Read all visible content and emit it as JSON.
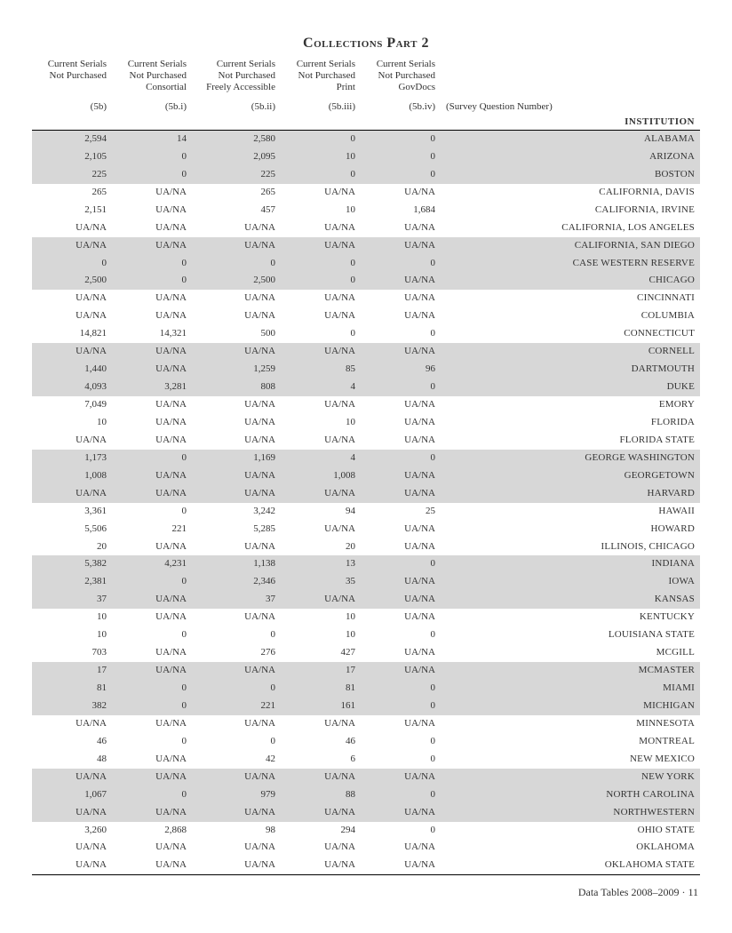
{
  "title": "Collections Part 2",
  "survey_label": "(Survey Question Number)",
  "institution_header": "INSTITUTION",
  "footer": "Data Tables 2008–2009 · 11",
  "colors": {
    "shade": "#d7d7d7",
    "rule": "#000000",
    "text": "#333333",
    "background": "#ffffff"
  },
  "columns": [
    {
      "lines": [
        "Current Serials",
        "Not Purchased"
      ],
      "q": "(5b)"
    },
    {
      "lines": [
        "Current Serials",
        "Not Purchased",
        "Consortial"
      ],
      "q": "(5b.i)"
    },
    {
      "lines": [
        "Current Serials",
        "Not Purchased",
        "Freely Accessible"
      ],
      "q": "(5b.ii)"
    },
    {
      "lines": [
        "Current Serials",
        "Not Purchased",
        "Print"
      ],
      "q": "(5b.iii)"
    },
    {
      "lines": [
        "Current Serials",
        "Not Purchased",
        "GovDocs"
      ],
      "q": "(5b.iv)"
    }
  ],
  "shaded_groups": [
    [
      0,
      2
    ],
    [
      6,
      8
    ],
    [
      12,
      14
    ],
    [
      18,
      20
    ],
    [
      24,
      26
    ],
    [
      30,
      32
    ],
    [
      36,
      38
    ]
  ],
  "rows": [
    {
      "c": [
        "2,594",
        "14",
        "2,580",
        "0",
        "0"
      ],
      "name": "ALABAMA"
    },
    {
      "c": [
        "2,105",
        "0",
        "2,095",
        "10",
        "0"
      ],
      "name": "ARIZONA"
    },
    {
      "c": [
        "225",
        "0",
        "225",
        "0",
        "0"
      ],
      "name": "BOSTON"
    },
    {
      "c": [
        "265",
        "UA/NA",
        "265",
        "UA/NA",
        "UA/NA"
      ],
      "name": "CALIFORNIA, DAVIS"
    },
    {
      "c": [
        "2,151",
        "UA/NA",
        "457",
        "10",
        "1,684"
      ],
      "name": "CALIFORNIA, IRVINE"
    },
    {
      "c": [
        "UA/NA",
        "UA/NA",
        "UA/NA",
        "UA/NA",
        "UA/NA"
      ],
      "name": "CALIFORNIA, LOS ANGELES"
    },
    {
      "c": [
        "UA/NA",
        "UA/NA",
        "UA/NA",
        "UA/NA",
        "UA/NA"
      ],
      "name": "CALIFORNIA, SAN DIEGO"
    },
    {
      "c": [
        "0",
        "0",
        "0",
        "0",
        "0"
      ],
      "name": "CASE WESTERN RESERVE"
    },
    {
      "c": [
        "2,500",
        "0",
        "2,500",
        "0",
        "UA/NA"
      ],
      "name": "CHICAGO"
    },
    {
      "c": [
        "UA/NA",
        "UA/NA",
        "UA/NA",
        "UA/NA",
        "UA/NA"
      ],
      "name": "CINCINNATI"
    },
    {
      "c": [
        "UA/NA",
        "UA/NA",
        "UA/NA",
        "UA/NA",
        "UA/NA"
      ],
      "name": "COLUMBIA"
    },
    {
      "c": [
        "14,821",
        "14,321",
        "500",
        "0",
        "0"
      ],
      "name": "CONNECTICUT"
    },
    {
      "c": [
        "UA/NA",
        "UA/NA",
        "UA/NA",
        "UA/NA",
        "UA/NA"
      ],
      "name": "CORNELL"
    },
    {
      "c": [
        "1,440",
        "UA/NA",
        "1,259",
        "85",
        "96"
      ],
      "name": "DARTMOUTH"
    },
    {
      "c": [
        "4,093",
        "3,281",
        "808",
        "4",
        "0"
      ],
      "name": "DUKE"
    },
    {
      "c": [
        "7,049",
        "UA/NA",
        "UA/NA",
        "UA/NA",
        "UA/NA"
      ],
      "name": "EMORY"
    },
    {
      "c": [
        "10",
        "UA/NA",
        "UA/NA",
        "10",
        "UA/NA"
      ],
      "name": "FLORIDA"
    },
    {
      "c": [
        "UA/NA",
        "UA/NA",
        "UA/NA",
        "UA/NA",
        "UA/NA"
      ],
      "name": "FLORIDA STATE"
    },
    {
      "c": [
        "1,173",
        "0",
        "1,169",
        "4",
        "0"
      ],
      "name": "GEORGE WASHINGTON"
    },
    {
      "c": [
        "1,008",
        "UA/NA",
        "UA/NA",
        "1,008",
        "UA/NA"
      ],
      "name": "GEORGETOWN"
    },
    {
      "c": [
        "UA/NA",
        "UA/NA",
        "UA/NA",
        "UA/NA",
        "UA/NA"
      ],
      "name": "HARVARD"
    },
    {
      "c": [
        "3,361",
        "0",
        "3,242",
        "94",
        "25"
      ],
      "name": "HAWAII"
    },
    {
      "c": [
        "5,506",
        "221",
        "5,285",
        "UA/NA",
        "UA/NA"
      ],
      "name": "HOWARD"
    },
    {
      "c": [
        "20",
        "UA/NA",
        "UA/NA",
        "20",
        "UA/NA"
      ],
      "name": "ILLINOIS, CHICAGO"
    },
    {
      "c": [
        "5,382",
        "4,231",
        "1,138",
        "13",
        "0"
      ],
      "name": "INDIANA"
    },
    {
      "c": [
        "2,381",
        "0",
        "2,346",
        "35",
        "UA/NA"
      ],
      "name": "IOWA"
    },
    {
      "c": [
        "37",
        "UA/NA",
        "37",
        "UA/NA",
        "UA/NA"
      ],
      "name": "KANSAS"
    },
    {
      "c": [
        "10",
        "UA/NA",
        "UA/NA",
        "10",
        "UA/NA"
      ],
      "name": "KENTUCKY"
    },
    {
      "c": [
        "10",
        "0",
        "0",
        "10",
        "0"
      ],
      "name": "LOUISIANA STATE"
    },
    {
      "c": [
        "703",
        "UA/NA",
        "276",
        "427",
        "UA/NA"
      ],
      "name": "MCGILL"
    },
    {
      "c": [
        "17",
        "UA/NA",
        "UA/NA",
        "17",
        "UA/NA"
      ],
      "name": "MCMASTER"
    },
    {
      "c": [
        "81",
        "0",
        "0",
        "81",
        "0"
      ],
      "name": "MIAMI"
    },
    {
      "c": [
        "382",
        "0",
        "221",
        "161",
        "0"
      ],
      "name": "MICHIGAN"
    },
    {
      "c": [
        "UA/NA",
        "UA/NA",
        "UA/NA",
        "UA/NA",
        "UA/NA"
      ],
      "name": "MINNESOTA"
    },
    {
      "c": [
        "46",
        "0",
        "0",
        "46",
        "0"
      ],
      "name": "MONTREAL"
    },
    {
      "c": [
        "48",
        "UA/NA",
        "42",
        "6",
        "0"
      ],
      "name": "NEW MEXICO"
    },
    {
      "c": [
        "UA/NA",
        "UA/NA",
        "UA/NA",
        "UA/NA",
        "UA/NA"
      ],
      "name": "NEW YORK"
    },
    {
      "c": [
        "1,067",
        "0",
        "979",
        "88",
        "0"
      ],
      "name": "NORTH CAROLINA"
    },
    {
      "c": [
        "UA/NA",
        "UA/NA",
        "UA/NA",
        "UA/NA",
        "UA/NA"
      ],
      "name": "NORTHWESTERN"
    },
    {
      "c": [
        "3,260",
        "2,868",
        "98",
        "294",
        "0"
      ],
      "name": "OHIO STATE"
    },
    {
      "c": [
        "UA/NA",
        "UA/NA",
        "UA/NA",
        "UA/NA",
        "UA/NA"
      ],
      "name": "OKLAHOMA"
    },
    {
      "c": [
        "UA/NA",
        "UA/NA",
        "UA/NA",
        "UA/NA",
        "UA/NA"
      ],
      "name": "OKLAHOMA STATE"
    }
  ]
}
